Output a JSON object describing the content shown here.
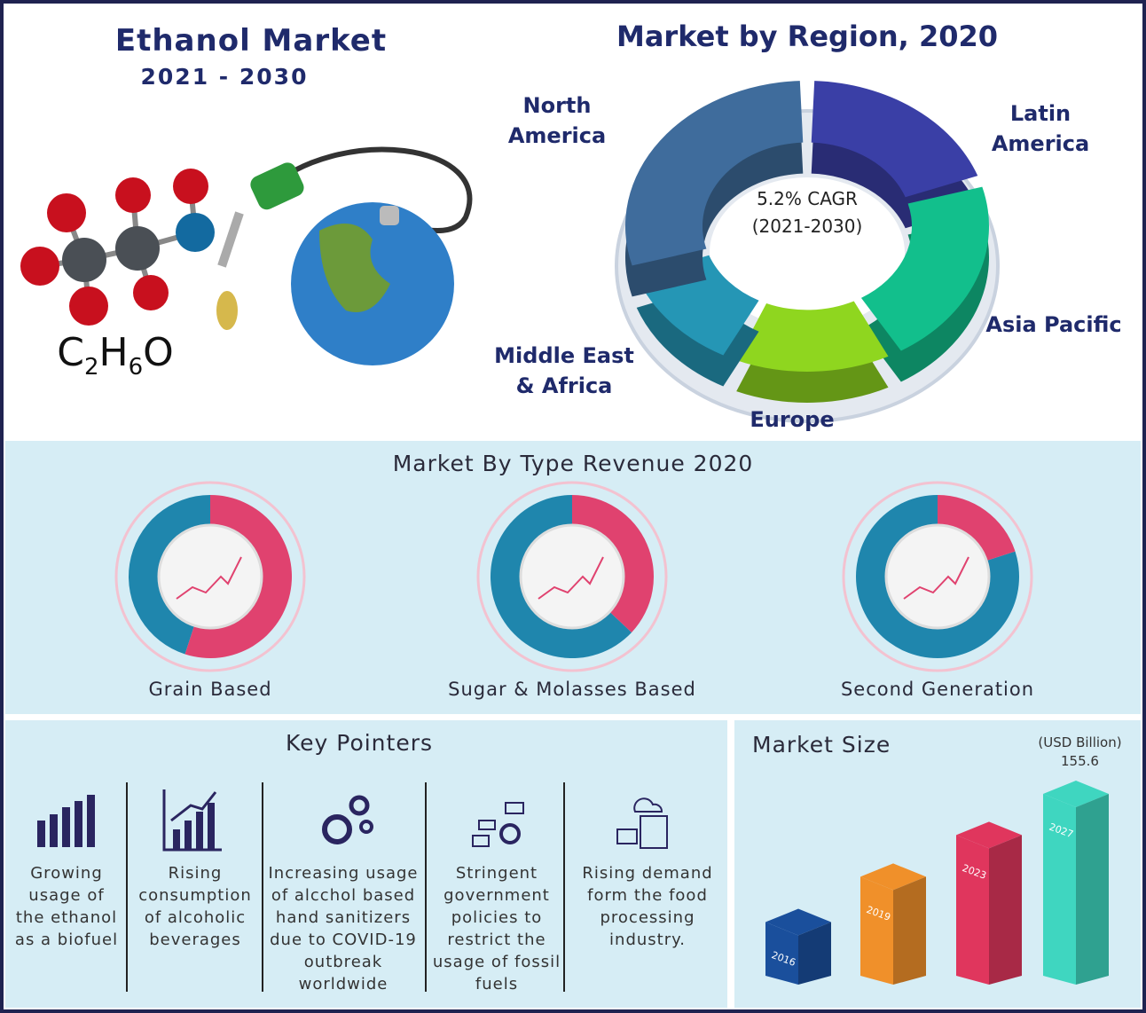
{
  "header": {
    "title": "Ethanol Market",
    "subtitle": "2021 - 2030",
    "formula": [
      "C",
      "2",
      "H",
      "6",
      "O"
    ]
  },
  "chart_data": [
    {
      "type": "donut",
      "title": "Market by Region, 2020",
      "center_text": [
        "5.2% CAGR",
        "(2021-2030)"
      ],
      "categories": [
        "Latin America",
        "Asia Pacific",
        "Europe",
        "Middle East & Africa",
        "North America"
      ],
      "values": [
        20,
        22,
        15,
        13,
        30
      ],
      "colors": [
        "#3a3fa6",
        "#12bf8c",
        "#8fd61f",
        "#2596b5",
        "#3f6c9c"
      ]
    },
    {
      "type": "type-donuts",
      "title": "Market By Type Revenue 2020",
      "categories": [
        "Grain Based",
        "Sugar & Molasses Based",
        "Second Generation"
      ],
      "values": [
        55,
        37,
        20
      ],
      "color": "#e0426f",
      "rest_color": "#1f86ad"
    },
    {
      "type": "bar",
      "title": "Market Size",
      "unit": "(USD Billion)",
      "categories": [
        "2016",
        "2019",
        "2023",
        "2027"
      ],
      "values": [
        51,
        88,
        122,
        155.6
      ],
      "colors": [
        "#1a4f9c",
        "#f0902a",
        "#e0365d",
        "#3fd6c0"
      ]
    }
  ],
  "key_pointers": {
    "title": "Key Pointers",
    "items": [
      "Growing usage of the ethanol as a biofuel",
      "Rising consumption of alcoholic beverages",
      "Increasing usage of alcchol based hand sanitizers due to COVID-19 outbreak worldwide",
      "Stringent government policies to restrict the usage of fossil fuels",
      "Rising demand form the food processing industry."
    ]
  }
}
